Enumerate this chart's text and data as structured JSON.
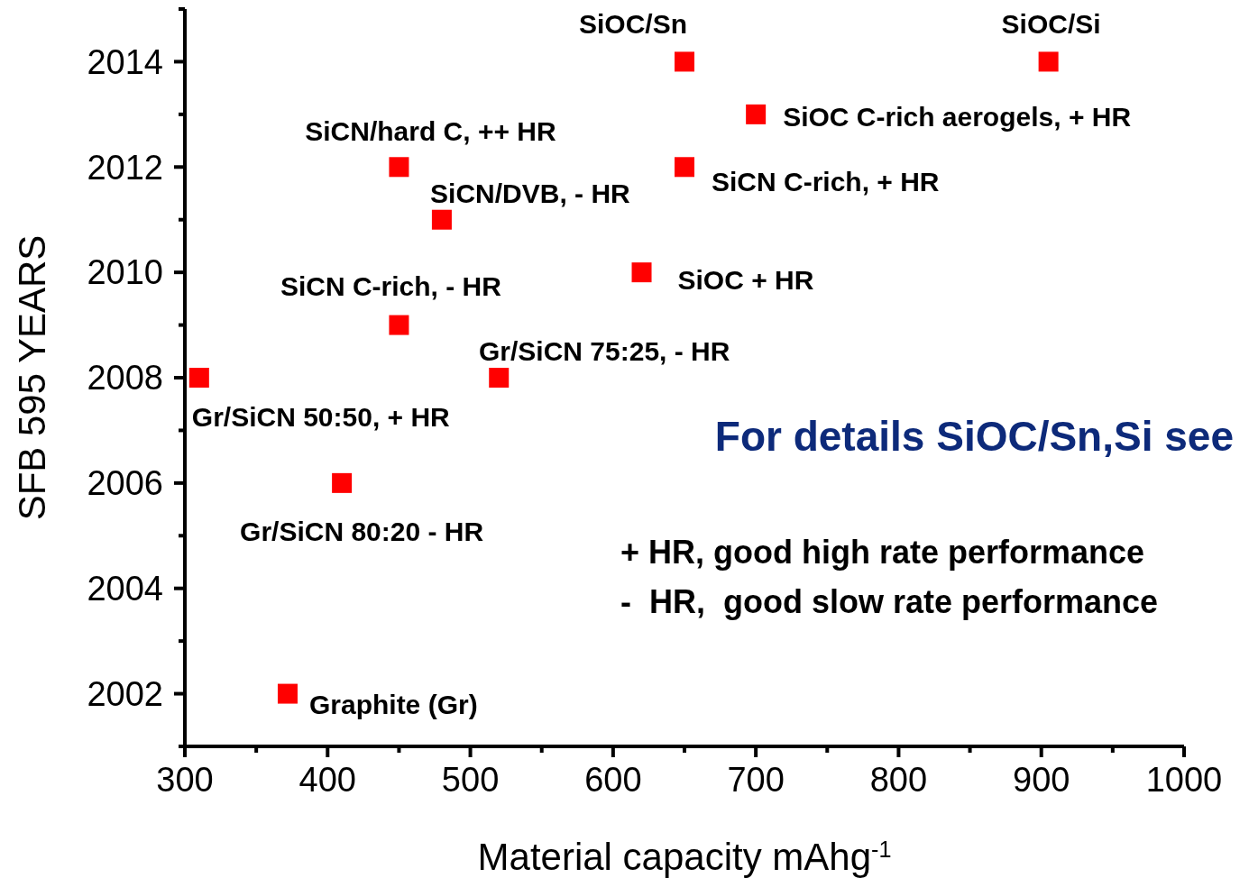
{
  "chart_data": {
    "type": "scatter",
    "xlabel": "Material capacity mAhg$^{-1}$",
    "ylabel": "SFB 595 YEARS",
    "marker": "square",
    "grid": false,
    "xlim": [
      300,
      1000
    ],
    "ylim": [
      2001,
      2015
    ],
    "xticks": [
      300,
      {
        "value": 350,
        "label": null
      },
      400,
      {
        "value": 450,
        "label": null
      },
      500,
      {
        "value": 550,
        "label": null
      },
      600,
      {
        "value": 650,
        "label": null
      },
      700,
      {
        "value": 750,
        "label": null
      },
      800,
      {
        "value": 850,
        "label": null
      },
      900,
      {
        "value": 950,
        "label": null
      },
      1000
    ],
    "yticks": [
      {
        "value": 2001,
        "label": null
      },
      2002,
      {
        "value": 2003,
        "label": null
      },
      2004,
      {
        "value": 2005,
        "label": null
      },
      2006,
      {
        "value": 2007,
        "label": null
      },
      2008,
      {
        "value": 2009,
        "label": null
      },
      2010,
      {
        "value": 2011,
        "label": null
      },
      2012,
      {
        "value": 2013,
        "label": null
      },
      2014,
      {
        "value": 2015,
        "label": null
      }
    ],
    "series": [
      {
        "color": "#ff0000",
        "x": [
          650,
          905,
          700,
          450,
          650,
          480,
          620,
          450,
          310,
          520,
          410,
          372
        ],
        "values": [
          2014,
          2014,
          2013,
          2012,
          2012,
          2011,
          2010,
          2009,
          2008,
          2008,
          2006,
          2002
        ]
      }
    ],
    "annotations": [
      {
        "text": "SiOC/Sn",
        "x": 650,
        "y": 2014
      },
      {
        "text": "SiOC/Si",
        "x": 905,
        "y": 2014
      },
      {
        "text": "SiOC C-rich aerogels, + HR",
        "x": 700,
        "y": 2013
      },
      {
        "text": "SiCN/hard C, ++ HR",
        "x": 450,
        "y": 2012
      },
      {
        "text": "SiCN C-rich, + HR",
        "x": 650,
        "y": 2012
      },
      {
        "text": "SiCN/DVB, - HR",
        "x": 480,
        "y": 2011
      },
      {
        "text": "SiOC + HR",
        "x": 620,
        "y": 2010
      },
      {
        "text": "SiCN C-rich, - HR",
        "x": 450,
        "y": 2009
      },
      {
        "text": "Gr/SiCN 50:50, + HR",
        "x": 310,
        "y": 2008
      },
      {
        "text": "Gr/SiCN 75:25, - HR",
        "x": 520,
        "y": 2008
      },
      {
        "text": "Gr/SiCN 80:20 - HR",
        "x": 410,
        "y": 2006
      },
      {
        "text": "Graphite (Gr)",
        "x": 372,
        "y": 2002
      },
      "For details SiOC/Sn,Si see",
      "+ HR, good high rate performance",
      "-  HR,  good slow rate performance"
    ]
  }
}
